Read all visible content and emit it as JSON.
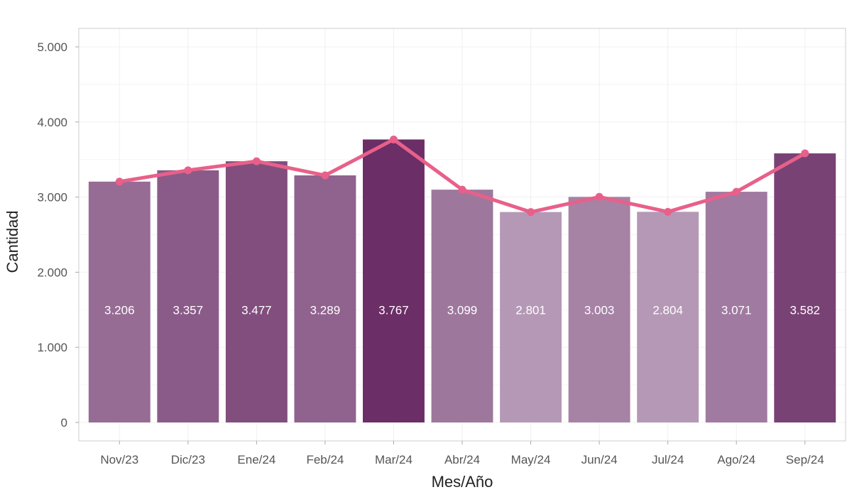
{
  "chart_data": {
    "type": "bar",
    "categories": [
      "Nov/23",
      "Dic/23",
      "Ene/24",
      "Feb/24",
      "Mar/24",
      "Abr/24",
      "May/24",
      "Jun/24",
      "Jul/24",
      "Ago/24",
      "Sep/24"
    ],
    "values": [
      3206,
      3357,
      3477,
      3289,
      3767,
      3099,
      2801,
      3003,
      2804,
      3071,
      3582
    ],
    "value_labels": [
      "3.206",
      "3.357",
      "3.477",
      "3.289",
      "3.767",
      "3.099",
      "2.801",
      "3.003",
      "2.804",
      "3.071",
      "3.582"
    ],
    "overlay_line": true,
    "xlabel": "Mes/Año",
    "ylabel": "Cantidad",
    "ylim": [
      0,
      5000
    ],
    "yticks": [
      0,
      1000,
      2000,
      3000,
      4000,
      5000
    ],
    "ytick_labels": [
      "0",
      "1.000",
      "2.000",
      "3.000",
      "4.000",
      "5.000"
    ],
    "grid": true,
    "legend": "none",
    "colors": {
      "bar_light": "#b598b6",
      "bar_dark": "#6b2e66",
      "line": "#e8608a",
      "panel_border": "#cccccc",
      "grid": "#f0f0f0"
    }
  }
}
